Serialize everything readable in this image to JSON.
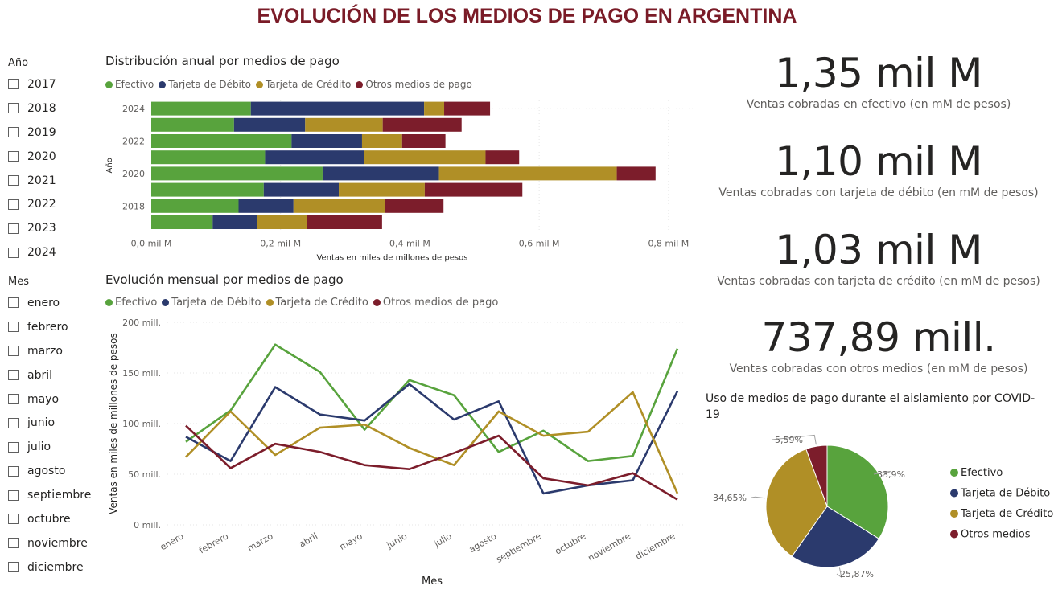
{
  "title": "EVOLUCIÓN DE LOS MEDIOS DE PAGO EN ARGENTINA",
  "colors": {
    "efectivo": "#58a33d",
    "debito": "#2b3a6d",
    "credito": "#b08f26",
    "otros": "#7c1d2b",
    "title": "#7a1b27"
  },
  "year_slicer": {
    "header": "Año",
    "items": [
      "2017",
      "2018",
      "2019",
      "2020",
      "2021",
      "2022",
      "2023",
      "2024"
    ]
  },
  "month_slicer": {
    "header": "Mes",
    "items": [
      "enero",
      "febrero",
      "marzo",
      "abril",
      "mayo",
      "junio",
      "julio",
      "agosto",
      "septiembre",
      "octubre",
      "noviembre",
      "diciembre"
    ]
  },
  "kpis": [
    {
      "value": "1,35 mil M",
      "label": "Ventas cobradas en efectivo (en mM de pesos)"
    },
    {
      "value": "1,10 mil M",
      "label": "Ventas cobradas con tarjeta de débito (en mM de pesos)"
    },
    {
      "value": "1,03 mil M",
      "label": "Ventas cobradas con tarjeta de crédito (en mM de pesos)"
    },
    {
      "value": "737,89 mill.",
      "label": "Ventas cobradas con otros medios (en mM de pesos)"
    }
  ],
  "chart_data": [
    {
      "type": "bar",
      "orientation": "horizontal-stacked",
      "title": "Distribución anual por medios de pago",
      "ylabel": "Año",
      "xlabel": "Ventas en miles de millones de pesos",
      "categories": [
        "2024",
        "2023",
        "2022",
        "2021",
        "2020",
        "2019",
        "2018",
        "2017"
      ],
      "y_tick_labels": [
        "2024",
        "",
        "2022",
        "",
        "2020",
        "",
        "2018",
        ""
      ],
      "x_ticks": [
        "0,0 mil M",
        "0,2 mil M",
        "0,4 mil M",
        "0,6 mil M",
        "0,8 mil M"
      ],
      "xlim": [
        0,
        0.84
      ],
      "legend": "top-left",
      "series": [
        {
          "name": "Efectivo",
          "values": [
            0.154,
            0.128,
            0.217,
            0.176,
            0.265,
            0.174,
            0.135,
            0.095
          ]
        },
        {
          "name": "Tarjeta de Débito",
          "values": [
            0.268,
            0.11,
            0.109,
            0.153,
            0.18,
            0.116,
            0.085,
            0.069
          ]
        },
        {
          "name": "Tarjeta de Crédito",
          "values": [
            0.031,
            0.12,
            0.062,
            0.188,
            0.275,
            0.133,
            0.142,
            0.077
          ]
        },
        {
          "name": "Otros medios de pago",
          "values": [
            0.071,
            0.122,
            0.067,
            0.052,
            0.06,
            0.151,
            0.09,
            0.116
          ]
        }
      ]
    },
    {
      "type": "line",
      "title": "Evolución mensual por medios de pago",
      "xlabel": "Mes",
      "ylabel": "Ventas en miles de millones de pesos",
      "categories": [
        "enero",
        "febrero",
        "marzo",
        "abril",
        "mayo",
        "junio",
        "julio",
        "agosto",
        "septiembre",
        "octubre",
        "noviembre",
        "diciembre"
      ],
      "y_ticks": [
        "0 mill.",
        "50 mill.",
        "100 mill.",
        "150 mill.",
        "200 mill."
      ],
      "ylim": [
        0,
        200
      ],
      "legend": "top-left",
      "series": [
        {
          "name": "Efectivo",
          "values": [
            82,
            113,
            178,
            151,
            94,
            143,
            128,
            72,
            93,
            63,
            68,
            174
          ]
        },
        {
          "name": "Tarjeta de Débito",
          "values": [
            87,
            63,
            136,
            109,
            103,
            139,
            104,
            122,
            31,
            39,
            44,
            132
          ]
        },
        {
          "name": "Tarjeta de Crédito",
          "values": [
            67,
            112,
            69,
            96,
            99,
            76,
            59,
            112,
            88,
            92,
            131,
            31
          ]
        },
        {
          "name": "Otros medios de pago",
          "values": [
            98,
            56,
            80,
            72,
            59,
            55,
            71,
            88,
            46,
            39,
            51,
            25
          ]
        }
      ]
    },
    {
      "type": "pie",
      "title": "Uso de medios de pago durante el aislamiento por COVID-19",
      "legend": "right",
      "slices": [
        {
          "name": "Efectivo",
          "value": 33.9,
          "label": "33,9%"
        },
        {
          "name": "Tarjeta de Débito",
          "value": 25.87,
          "label": "25,87%"
        },
        {
          "name": "Tarjeta de Crédito",
          "value": 34.65,
          "label": "34,65%"
        },
        {
          "name": "Otros medios",
          "value": 5.59,
          "label": "5,59%"
        }
      ]
    }
  ]
}
